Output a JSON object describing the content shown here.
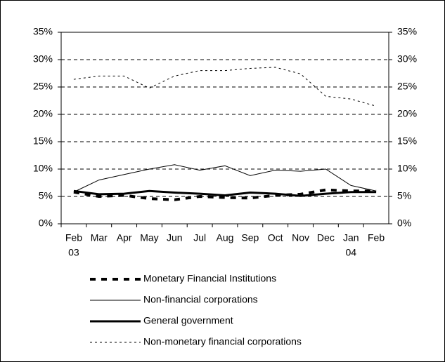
{
  "chart_data": {
    "type": "line",
    "categories": [
      "Feb",
      "Mar",
      "Apr",
      "May",
      "Jun",
      "Jul",
      "Aug",
      "Sep",
      "Oct",
      "Nov",
      "Dec",
      "Jan",
      "Feb"
    ],
    "year_labels": [
      "03",
      null,
      null,
      null,
      null,
      null,
      null,
      null,
      null,
      null,
      null,
      "04",
      null
    ],
    "ylim": [
      0,
      35
    ],
    "yticks": [
      {
        "value": 0,
        "label": "0%"
      },
      {
        "value": 5,
        "label": "5%"
      },
      {
        "value": 10,
        "label": "10%"
      },
      {
        "value": 15,
        "label": "15%"
      },
      {
        "value": 20,
        "label": "20%"
      },
      {
        "value": 25,
        "label": "25%"
      },
      {
        "value": 30,
        "label": "30%"
      },
      {
        "value": 35,
        "label": "35%"
      }
    ],
    "y2lim": [
      0,
      35
    ],
    "y2ticks": [
      {
        "value": 0,
        "label": "0%"
      },
      {
        "value": 5,
        "label": "5%"
      },
      {
        "value": 10,
        "label": "10%"
      },
      {
        "value": 15,
        "label": "15%"
      },
      {
        "value": 20,
        "label": "20%"
      },
      {
        "value": 25,
        "label": "25%"
      },
      {
        "value": 30,
        "label": "30%"
      },
      {
        "value": 35,
        "label": "35%"
      }
    ],
    "grid": true,
    "legend": "bottom",
    "series": [
      {
        "name": "Monetary Financial Institutions",
        "color": "#000000",
        "style": "thick-dashed",
        "values": [
          5.8,
          5.0,
          5.2,
          4.6,
          4.4,
          5.0,
          4.8,
          4.7,
          5.2,
          5.4,
          6.2,
          6.0,
          6.0
        ]
      },
      {
        "name": "Non-financial corporations",
        "color": "#000000",
        "style": "thin-solid",
        "values": [
          5.8,
          8.0,
          9.0,
          10.0,
          10.8,
          9.8,
          10.6,
          8.8,
          9.8,
          9.6,
          10.0,
          7.0,
          6.0
        ]
      },
      {
        "name": "General government",
        "color": "#000000",
        "style": "thick-solid",
        "values": [
          6.0,
          5.4,
          5.5,
          6.0,
          5.7,
          5.5,
          5.2,
          5.7,
          5.5,
          5.1,
          5.5,
          5.8,
          5.8
        ]
      },
      {
        "name": "Non-monetary financial corporations",
        "color": "#000000",
        "style": "thin-dotted",
        "values": [
          26.4,
          27.0,
          27.0,
          24.8,
          27.0,
          28.0,
          28.0,
          28.4,
          28.6,
          27.4,
          23.3,
          22.8,
          21.5
        ]
      }
    ]
  }
}
